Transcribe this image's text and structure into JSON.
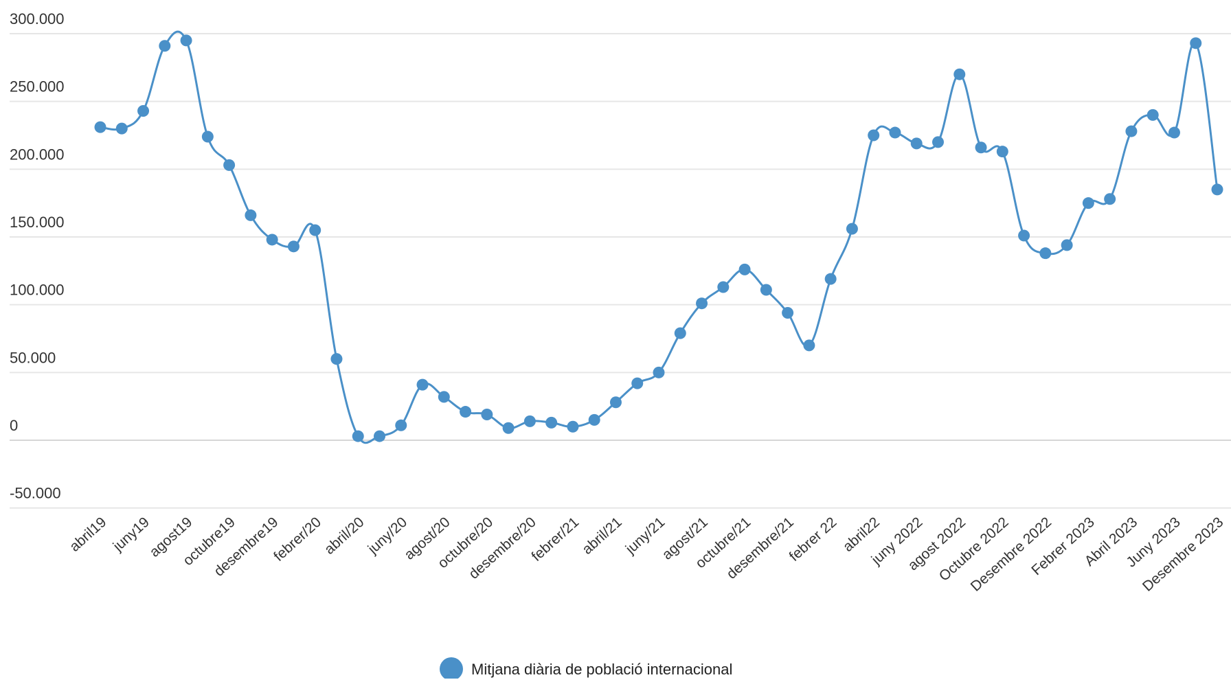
{
  "chart_data": {
    "type": "line",
    "title": "",
    "xlabel": "",
    "ylabel": "",
    "ylim": [
      -50000,
      300000
    ],
    "yticks": [
      "300.000",
      "250.000",
      "200.000",
      "150.000",
      "100.000",
      "50.000",
      "0",
      "-50.000"
    ],
    "ytick_values": [
      300000,
      250000,
      200000,
      150000,
      100000,
      50000,
      0,
      -50000
    ],
    "grid": true,
    "legend_position": "bottom-center",
    "color": "#4a90c8",
    "tick_labels": [
      "abril19",
      "juny19",
      "agost19",
      "octubre19",
      "desembre19",
      "febrer/20",
      "abril/20",
      "juny/20",
      "agost/20",
      "octubre/20",
      "desembre/20",
      "febrer/21",
      "abril/21",
      "juny/21",
      "agost/21",
      "octubre/21",
      "desembre/21",
      "febrer 22",
      "abril22",
      "juny 2022",
      "agost 2022",
      "Octubre 2022",
      "Desembre 2022",
      "Febrer 2023",
      "Abril 2023",
      "Juny 2023",
      "Desembre 2023"
    ],
    "series": [
      {
        "name": "Mitjana diària de població internacional",
        "values": [
          231000,
          230000,
          243000,
          291000,
          295000,
          224000,
          203000,
          166000,
          148000,
          143000,
          155000,
          60000,
          3000,
          3000,
          11000,
          41000,
          32000,
          21000,
          19000,
          9000,
          14000,
          13000,
          10000,
          15000,
          28000,
          42000,
          50000,
          79000,
          101000,
          113000,
          126000,
          111000,
          94000,
          70000,
          119000,
          156000,
          225000,
          227000,
          219000,
          220000,
          270000,
          216000,
          213000,
          151000,
          138000,
          144000,
          175000,
          178000,
          228000,
          240000,
          227000,
          293000,
          185000
        ]
      }
    ]
  }
}
